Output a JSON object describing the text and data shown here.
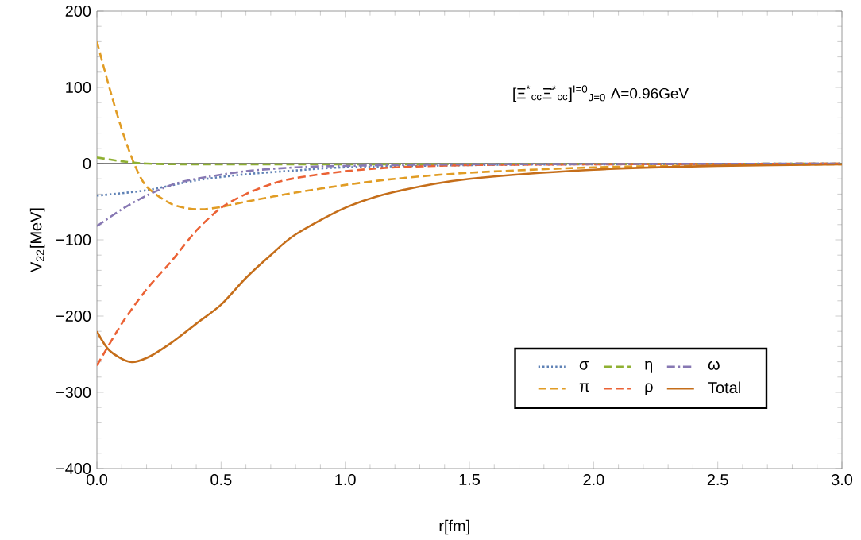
{
  "chart_data": {
    "type": "line",
    "xlabel": "r[fm]",
    "ylabel": "V$_{22}$[MeV]",
    "annotations": [
      "[Ξ$^{*}$$_{cc}$Ξ̄$^{*}$$_{cc}$]$^{I=0}$$_{J=0}$  Λ=0.96GeV"
    ],
    "xlim": [
      0,
      3
    ],
    "ylim": [
      -400,
      200
    ],
    "xticks": [
      {
        "value": 0,
        "label": "0.0"
      },
      {
        "value": 0.5,
        "label": "0.5"
      },
      {
        "value": 1,
        "label": "1.0"
      },
      {
        "value": 1.5,
        "label": "1.5"
      },
      {
        "value": 2,
        "label": "2.0"
      },
      {
        "value": 2.5,
        "label": "2.5"
      },
      {
        "value": 3,
        "label": "3.0"
      }
    ],
    "yticks": [
      {
        "value": -400,
        "label": "−400"
      },
      {
        "value": -300,
        "label": "−300"
      },
      {
        "value": -200,
        "label": "−200"
      },
      {
        "value": -100,
        "label": "−100"
      },
      0,
      100,
      200
    ],
    "grid": false,
    "legend": "bottom right",
    "marker": "none",
    "ref_lines": [
      {
        "axis": "y",
        "value": 0,
        "color": "#555555"
      }
    ],
    "series": [
      {
        "name": "σ",
        "color": "#5e81b5",
        "line_style": "dotted",
        "x": [
          0,
          0.2,
          0.4,
          0.6,
          0.8,
          1.0,
          1.5,
          2.0,
          3.0
        ],
        "values": [
          -42,
          -35,
          -22,
          -14,
          -9,
          -5,
          -2,
          -1,
          0
        ]
      },
      {
        "name": "π",
        "color": "#e19c24",
        "line_style": "dashed",
        "x": [
          0,
          0.05,
          0.1,
          0.15,
          0.2,
          0.3,
          0.4,
          0.5,
          0.6,
          0.8,
          1.0,
          1.2,
          1.5,
          2.0,
          2.5,
          3.0
        ],
        "values": [
          160,
          100,
          45,
          0,
          -30,
          -53,
          -60,
          -57,
          -50,
          -38,
          -28,
          -20,
          -12,
          -5,
          -2,
          -1
        ]
      },
      {
        "name": "η",
        "color": "#8fb032",
        "line_style": "dashed",
        "x": [
          0,
          0.1,
          0.2,
          0.4,
          1.0,
          3.0
        ],
        "values": [
          8,
          3,
          0,
          -1,
          -1,
          0
        ]
      },
      {
        "name": "ρ",
        "color": "#eb6235",
        "line_style": "dashed",
        "x": [
          0,
          0.1,
          0.2,
          0.3,
          0.4,
          0.5,
          0.6,
          0.7,
          0.8,
          1.0,
          1.2,
          1.5,
          2.0,
          3.0
        ],
        "values": [
          -265,
          -210,
          -165,
          -128,
          -88,
          -58,
          -40,
          -27,
          -19,
          -10,
          -5,
          -2,
          -1,
          0
        ]
      },
      {
        "name": "ω",
        "color": "#8778b3",
        "line_style": "dashdot",
        "x": [
          0,
          0.1,
          0.2,
          0.3,
          0.4,
          0.6,
          0.8,
          1.0,
          1.5,
          3.0
        ],
        "values": [
          -82,
          -60,
          -42,
          -28,
          -20,
          -10,
          -5,
          -3,
          -1,
          0
        ]
      },
      {
        "name": "Total",
        "color": "#c56e1a",
        "line_style": "solid",
        "x": [
          0,
          0.05,
          0.13,
          0.2,
          0.3,
          0.4,
          0.5,
          0.6,
          0.7,
          0.8,
          1.0,
          1.2,
          1.5,
          2.0,
          2.5,
          3.0
        ],
        "values": [
          -220,
          -245,
          -260,
          -255,
          -235,
          -210,
          -185,
          -150,
          -120,
          -93,
          -58,
          -37,
          -20,
          -8,
          -3,
          -1
        ]
      }
    ]
  }
}
